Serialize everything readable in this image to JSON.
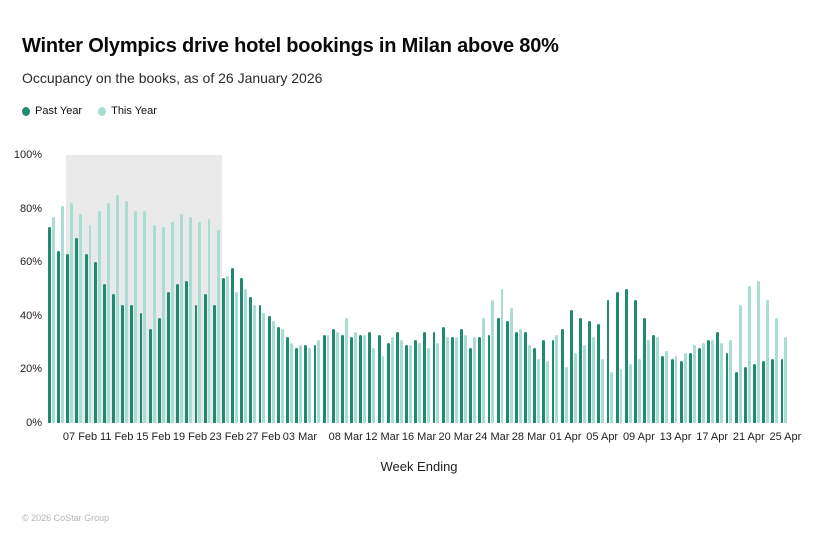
{
  "page": {
    "background": "#ffffff"
  },
  "header": {
    "title": "Winter Olympics drive hotel bookings in Milan above 80%",
    "subtitle": "Occupancy on the books, as of 26 January 2026"
  },
  "legend": [
    {
      "label": "Past Year",
      "color": "#1f8a70"
    },
    {
      "label": "This Year",
      "color": "#a9dcd3"
    }
  ],
  "footer": {
    "copyright": "© 2026 CoStar Group"
  },
  "chart_data": {
    "type": "bar",
    "title": "Winter Olympics drive hotel bookings in Milan above 80%",
    "subtitle": "Occupancy on the books, as of 26 January 2026",
    "xlabel": "Week Ending",
    "ylabel": "",
    "ylim": [
      0,
      100
    ],
    "grid": false,
    "legend_position": "top-left",
    "y_ticks": [
      "0%",
      "20%",
      "40%",
      "60%",
      "80%",
      "100%"
    ],
    "x_tick_labels": [
      "07 Feb",
      "11 Feb",
      "15 Feb",
      "19 Feb",
      "23 Feb",
      "27 Feb",
      "03 Mar",
      "08 Mar",
      "12 Mar",
      "16 Mar",
      "20 Mar",
      "24 Mar",
      "28 Mar",
      "01 Apr",
      "05 Apr",
      "09 Apr",
      "13 Apr",
      "17 Apr",
      "21 Apr",
      "25 Apr"
    ],
    "highlight_region": {
      "start": "06 Feb",
      "end": "22 Feb",
      "color": "#e9e9e9",
      "meaning": "Winter Olympics period"
    },
    "categories": [
      "04 Feb",
      "05 Feb",
      "06 Feb",
      "07 Feb",
      "08 Feb",
      "09 Feb",
      "10 Feb",
      "11 Feb",
      "12 Feb",
      "13 Feb",
      "14 Feb",
      "15 Feb",
      "16 Feb",
      "17 Feb",
      "18 Feb",
      "19 Feb",
      "20 Feb",
      "21 Feb",
      "22 Feb",
      "23 Feb",
      "24 Feb",
      "25 Feb",
      "26 Feb",
      "27 Feb",
      "28 Feb",
      "01 Mar",
      "02 Mar",
      "03 Mar",
      "04 Mar",
      "05 Mar",
      "06 Mar",
      "07 Mar",
      "08 Mar",
      "09 Mar",
      "10 Mar",
      "11 Mar",
      "12 Mar",
      "13 Mar",
      "14 Mar",
      "15 Mar",
      "16 Mar",
      "17 Mar",
      "18 Mar",
      "19 Mar",
      "20 Mar",
      "21 Mar",
      "22 Mar",
      "23 Mar",
      "24 Mar",
      "25 Mar",
      "26 Mar",
      "27 Mar",
      "28 Mar",
      "29 Mar",
      "30 Mar",
      "31 Mar",
      "01 Apr",
      "02 Apr",
      "03 Apr",
      "04 Apr",
      "05 Apr",
      "06 Apr",
      "07 Apr",
      "08 Apr",
      "09 Apr",
      "10 Apr",
      "11 Apr",
      "12 Apr",
      "13 Apr",
      "14 Apr",
      "15 Apr",
      "16 Apr",
      "17 Apr",
      "18 Apr",
      "19 Apr",
      "20 Apr",
      "21 Apr",
      "22 Apr",
      "23 Apr",
      "24 Apr",
      "25 Apr"
    ],
    "series": [
      {
        "name": "Past Year",
        "color": "#1f8a70",
        "values": [
          73,
          64,
          63,
          69,
          63,
          60,
          52,
          48,
          44,
          44,
          41,
          35,
          39,
          49,
          52,
          53,
          44,
          48,
          44,
          54,
          58,
          54,
          47,
          44,
          40,
          36,
          32,
          28,
          29,
          29,
          33,
          35,
          33,
          32,
          33,
          34,
          33,
          30,
          34,
          29,
          31,
          34,
          34,
          36,
          32,
          35,
          28,
          32,
          33,
          39,
          38,
          34,
          34,
          28,
          31,
          31,
          35,
          42,
          39,
          38,
          37,
          46,
          49,
          50,
          46,
          39,
          33,
          25,
          24,
          23,
          26,
          28,
          31,
          34,
          26,
          19,
          21,
          22,
          23,
          24,
          24
        ]
      },
      {
        "name": "This Year",
        "color": "#a9dcd3",
        "values": [
          77,
          81,
          82,
          78,
          74,
          79,
          82,
          85,
          83,
          79,
          79,
          74,
          73,
          75,
          78,
          77,
          75,
          76,
          72,
          55,
          49,
          50,
          44,
          41,
          38,
          35,
          30,
          29,
          28,
          31,
          33,
          34,
          39,
          34,
          33,
          28,
          25,
          32,
          31,
          29,
          30,
          28,
          30,
          32,
          32,
          33,
          32,
          39,
          46,
          50,
          43,
          35,
          29,
          24,
          23,
          33,
          21,
          26,
          29,
          32,
          24,
          19,
          20,
          22,
          24,
          31,
          32,
          27,
          25,
          26,
          29,
          30,
          31,
          30,
          31,
          44,
          51,
          53,
          46,
          39,
          32
        ]
      }
    ]
  }
}
